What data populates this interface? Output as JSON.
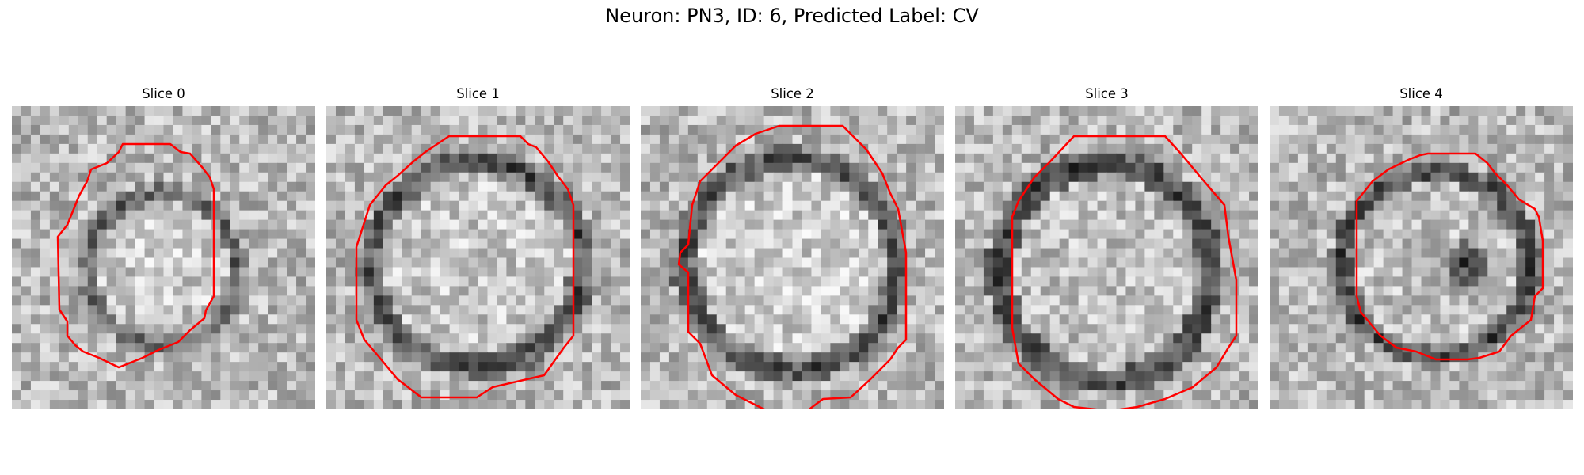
{
  "figure": {
    "title": "Neuron: PN3, ID: 6, Predicted Label: CV"
  },
  "panels": [
    {
      "title": "Slice 0"
    },
    {
      "title": "Slice 1"
    },
    {
      "title": "Slice 2"
    },
    {
      "title": "Slice 3"
    },
    {
      "title": "Slice 4"
    }
  ],
  "colors": {
    "background": "#ffffff",
    "contour": "#ff0000"
  }
}
